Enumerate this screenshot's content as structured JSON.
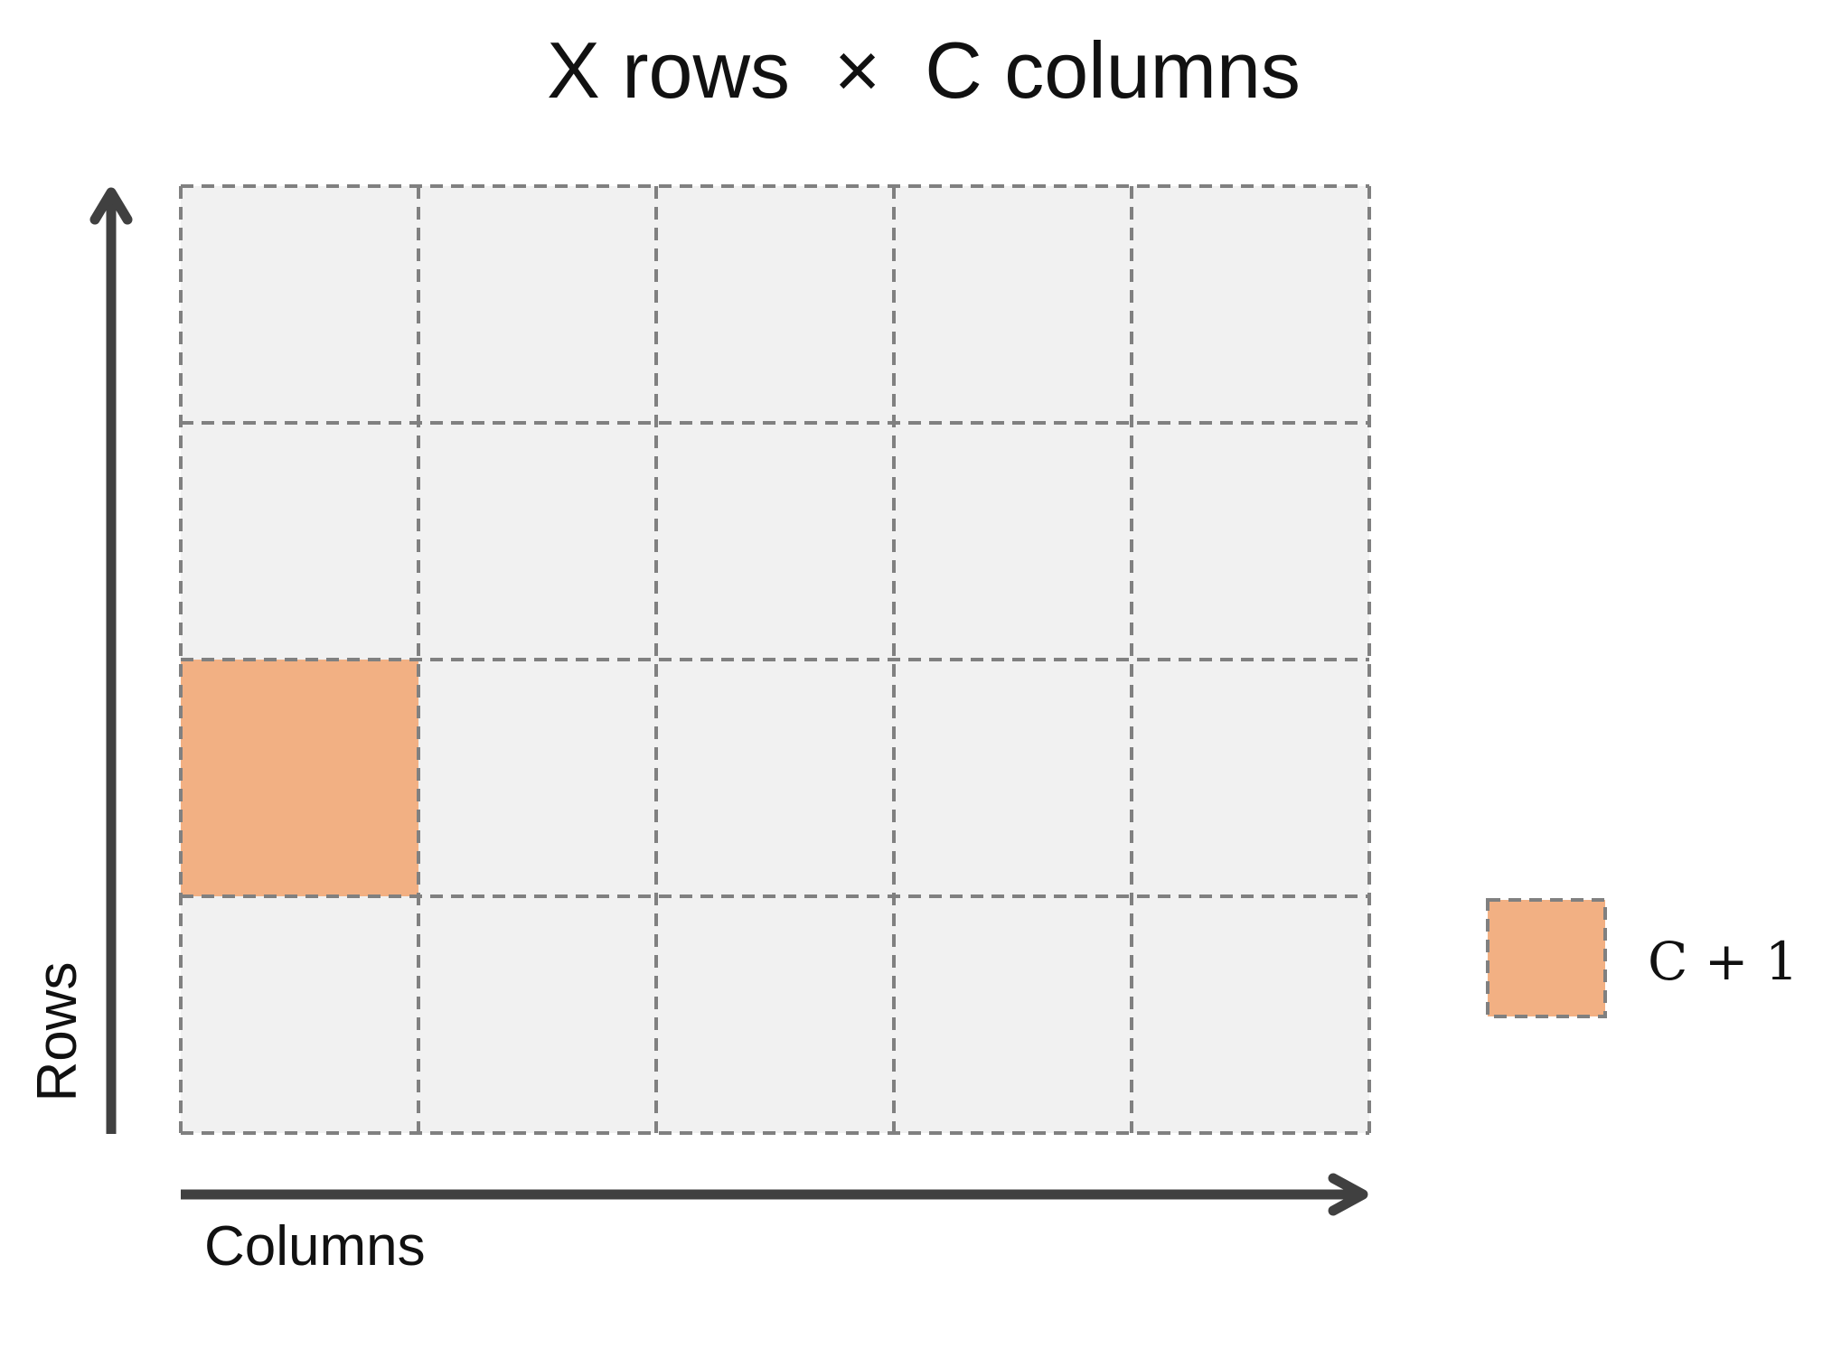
{
  "title": "X rows  ×  C columns",
  "axes": {
    "x_label": "Columns",
    "y_label": "Rows"
  },
  "grid": {
    "rows": 4,
    "columns": 5,
    "highlighted_cell": {
      "row": 3,
      "column": 1
    }
  },
  "legend": {
    "label": "C + 1"
  },
  "colors": {
    "cell_fill": "#f1f1f1",
    "highlight_fill": "#f2b083",
    "grid_line": "#808080",
    "axis": "#404040",
    "text": "#111111"
  }
}
